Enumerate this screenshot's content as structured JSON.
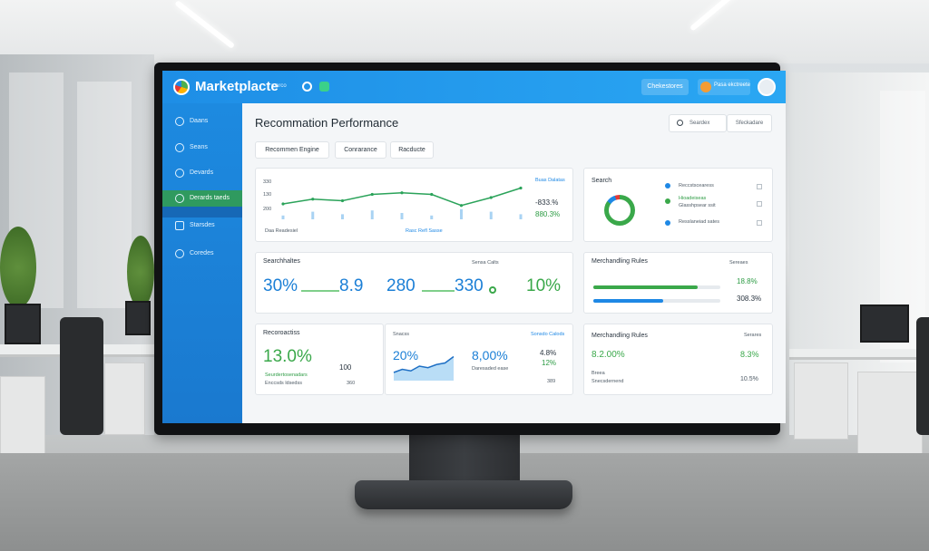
{
  "app": {
    "title": "Marketplacte",
    "subtitle": "marco"
  },
  "topbar": {
    "button_label": "Chekestores",
    "user_label": "Pasa ekctreete"
  },
  "sidebar": {
    "items": [
      {
        "label": "Daans"
      },
      {
        "label": "Seans"
      },
      {
        "label": "Devards"
      },
      {
        "label": "Derards taeds"
      },
      {
        "label": "Starsdes"
      },
      {
        "label": "Coredes"
      }
    ],
    "active_index": 3
  },
  "main": {
    "title": "Recommation Performance",
    "search_placeholder": "Seardex",
    "search_button": "Sfeckadare",
    "tabs": [
      {
        "label": "Recommen Engine"
      },
      {
        "label": "Conrarance"
      },
      {
        "label": "Racducte"
      }
    ]
  },
  "line_card": {
    "y_ticks": [
      "330",
      "130",
      "200"
    ],
    "x_labels": [
      "Daa Readesiel",
      "Rasc Refl Sasse"
    ],
    "legend_label": "Buas Dalatas",
    "stat_1": "-833.%",
    "stat_2": "880.3%",
    "chart_data": {
      "type": "line",
      "x": [
        0,
        1,
        2,
        3,
        4,
        5,
        6,
        7,
        8
      ],
      "values": [
        2.2,
        2.35,
        2.3,
        2.5,
        2.55,
        2.5,
        2.15,
        2.4,
        2.7
      ],
      "bars": [
        0.3,
        0.6,
        0.4,
        0.7,
        0.5,
        0.3,
        0.8,
        0.6,
        0.4
      ]
    }
  },
  "search_card": {
    "title": "Search",
    "items": [
      {
        "label": "Reccstscearess",
        "color": "#1e88e5"
      },
      {
        "label": "Hioadeiseas",
        "color": "#3aa84a"
      },
      {
        "label": "Glasshpsear ssit",
        "color": "#f39c35"
      },
      {
        "label": "Resslaneiad sates",
        "color": "#1e88e5"
      }
    ],
    "donut_percent": 85
  },
  "metrics_card": {
    "label": "Searchhaltes",
    "right_label": "Sensa Calts",
    "values": [
      "30%",
      "8.9",
      "280",
      "330",
      "10%"
    ],
    "value_colors": [
      "blue",
      "blue",
      "blue",
      "blue",
      "green"
    ]
  },
  "merch_card_1": {
    "title": "Merchandling Rules",
    "right_label": "Sereaes",
    "stat_1": "18.8%",
    "stat_2": "308.3%",
    "bar_green_fraction": 0.82,
    "bar_blue_fraction": 0.55
  },
  "rec_card": {
    "title": "Recoroactiss",
    "big_value": "13.0%",
    "side_value": "100",
    "green_label": "Seurdertosenadars",
    "sub_label": "Enccsds ldsedss",
    "sub_value": "360"
  },
  "trend_card": {
    "left_label": "Snacss",
    "right_label": "Sonsdo Calods",
    "pct": "20%",
    "value": "8,00%",
    "value_label": "Daresaded ease",
    "stat_1": "4.8%",
    "stat_2": "12%",
    "stat_3": "389",
    "chart_data": {
      "type": "area",
      "x": [
        0,
        1,
        2,
        3,
        4,
        5,
        6,
        7
      ],
      "values": [
        2,
        3,
        2.5,
        4,
        3.5,
        4.5,
        5,
        7
      ]
    }
  },
  "merch_card_2": {
    "title": "Merchandling Rules",
    "right_label": "Serares",
    "big_value": "8.2.00%",
    "stat": "8.3%",
    "sub_label_1": "Breea",
    "sub_label_2": "Snecsdernend",
    "sub_value": "10.5%"
  }
}
